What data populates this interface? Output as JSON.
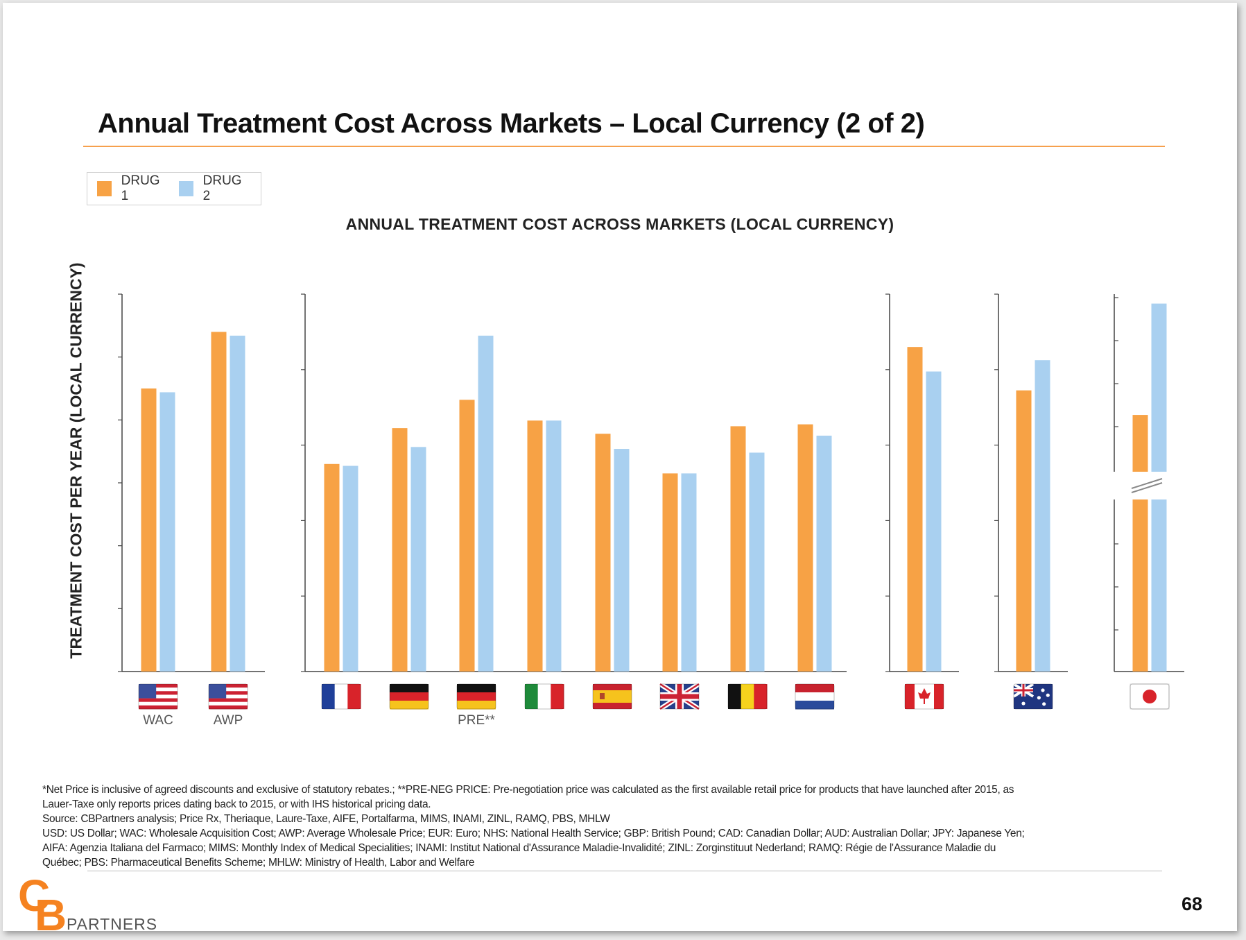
{
  "slide": {
    "title": "Annual Treatment Cost Across Markets – Local Currency (2 of 2)",
    "page_number": "68",
    "logo": {
      "mark_c": "C",
      "mark_b": "B",
      "text": "PARTNERS"
    },
    "footnotes": [
      "*Net Price is inclusive of agreed discounts and exclusive of statutory rebates.; **PRE-NEG PRICE: Pre-negotiation price was calculated as the first available retail price for products that have launched after 2015, as",
      "Lauer-Taxe only reports prices dating back to 2015, or with IHS historical pricing data.",
      "Source: CBPartners analysis; Price Rx, Theriaque, Laure-Taxe, AIFE, Portalfarma, MIMS, INAMI, ZINL, RAMQ, PBS, MHLW",
      "USD: US Dollar; WAC: Wholesale Acquisition Cost; AWP: Average Wholesale Price; EUR: Euro; NHS: National Health Service; GBP: British Pound; CAD: Canadian Dollar; AUD: Australian Dollar; JPY: Japanese Yen;",
      "AIFA: Agenzia Italiana del Farmaco; MIMS: Monthly Index of Medical Specialities; INAMI: Institut National d'Assurance Maladie-Invalidité; ZINL: Zorginstituut Nederland; RAMQ: Régie de l'Assurance Maladie du",
      "Québec; PBS: Pharmaceutical Benefits Scheme; MHLW: Ministry of Health, Labor and Welfare"
    ]
  },
  "chart_data": {
    "type": "bar",
    "title": "ANNUAL  TREATMENT  COST ACROSS MARKETS  (LOCAL  CURRENCY)",
    "ylabel": "TREATMENT COST PER YEAR (LOCAL CURRENCY)",
    "legend": {
      "position": "top-left",
      "entries": [
        "DRUG 1",
        "DRUG 2"
      ]
    },
    "colors": {
      "drug1": "#f7a245",
      "drug2": "#a9d0f0",
      "axis": "#444444"
    },
    "axis_note": "no numeric tick labels shown; values are relative bar heights within each panel (0-100 scale)",
    "panels": [
      {
        "market": "US",
        "ylim": [
          0,
          100
        ],
        "categories": [
          {
            "flag": "us",
            "label": "WAC"
          },
          {
            "flag": "us",
            "label": "AWP"
          }
        ],
        "series": [
          {
            "name": "DRUG 1",
            "values": [
              75,
              90
            ]
          },
          {
            "name": "DRUG 2",
            "values": [
              74,
              89
            ]
          }
        ]
      },
      {
        "market": "Europe",
        "ylim": [
          0,
          100
        ],
        "categories": [
          {
            "flag": "france",
            "label": ""
          },
          {
            "flag": "germany",
            "label": ""
          },
          {
            "flag": "germany",
            "label": "PRE**"
          },
          {
            "flag": "italy",
            "label": ""
          },
          {
            "flag": "spain",
            "label": ""
          },
          {
            "flag": "uk",
            "label": ""
          },
          {
            "flag": "belgium",
            "label": ""
          },
          {
            "flag": "netherlands",
            "label": ""
          }
        ],
        "series": [
          {
            "name": "DRUG 1",
            "values": [
              55,
              64.5,
              72,
              66.5,
              63,
              52.5,
              65,
              65.5
            ]
          },
          {
            "name": "DRUG 2",
            "values": [
              54.5,
              59.5,
              89,
              66.5,
              59,
              52.5,
              58,
              62.5
            ]
          }
        ]
      },
      {
        "market": "Canada",
        "ylim": [
          0,
          100
        ],
        "categories": [
          {
            "flag": "canada",
            "label": ""
          }
        ],
        "series": [
          {
            "name": "DRUG 1",
            "values": [
              86
            ]
          },
          {
            "name": "DRUG 2",
            "values": [
              79.5
            ]
          }
        ]
      },
      {
        "market": "Australia",
        "ylim": [
          0,
          100
        ],
        "categories": [
          {
            "flag": "australia",
            "label": ""
          }
        ],
        "series": [
          {
            "name": "DRUG 1",
            "values": [
              74.5
            ]
          },
          {
            "name": "DRUG 2",
            "values": [
              82.5
            ]
          }
        ]
      },
      {
        "market": "Japan",
        "ylim": [
          0,
          100
        ],
        "axis_break": true,
        "categories": [
          {
            "flag": "japan",
            "label": ""
          }
        ],
        "series": [
          {
            "name": "DRUG 1",
            "values": [
              68
            ]
          },
          {
            "name": "DRUG 2",
            "values": [
              97.5
            ]
          }
        ]
      }
    ]
  }
}
